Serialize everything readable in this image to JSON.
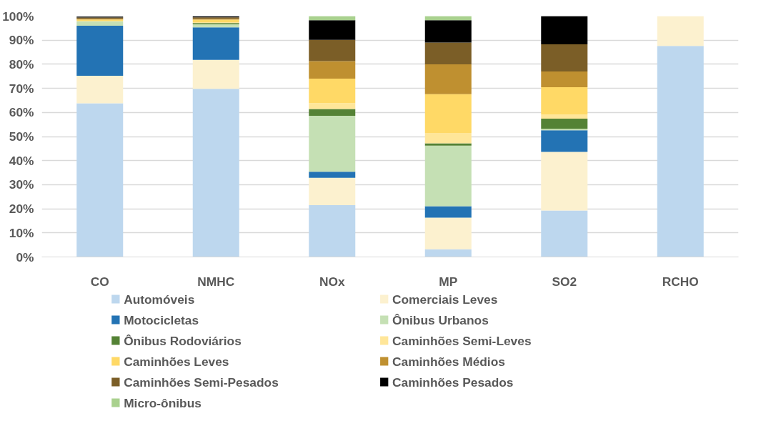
{
  "chart_data": {
    "type": "bar",
    "stacked": true,
    "categories": [
      "CO",
      "NMHC",
      "NOx",
      "MP",
      "SO2",
      "RCHO"
    ],
    "ylim": [
      0,
      100
    ],
    "yticks": [
      {
        "value": 0,
        "label": "0%"
      },
      {
        "value": 10,
        "label": "10%"
      },
      {
        "value": 20,
        "label": "20%"
      },
      {
        "value": 30,
        "label": "30%"
      },
      {
        "value": 40,
        "label": "40%"
      },
      {
        "value": 50,
        "label": "50%"
      },
      {
        "value": 60,
        "label": "60%"
      },
      {
        "value": 70,
        "label": "70%"
      },
      {
        "value": 80,
        "label": "80%"
      },
      {
        "value": 90,
        "label": "90%"
      },
      {
        "value": 100,
        "label": "100%"
      }
    ],
    "grid": "y",
    "legend": "bottom",
    "series": [
      {
        "name": "Automóveis",
        "color": "#bdd7ee",
        "values": [
          63.8,
          69.8,
          21.5,
          3.2,
          19.3,
          87.6
        ]
      },
      {
        "name": "Comerciais Leves",
        "color": "#fcf1cf",
        "values": [
          11.4,
          12.0,
          11.4,
          13.1,
          24.3,
          12.4
        ]
      },
      {
        "name": "Motocicletas",
        "color": "#2373b4",
        "values": [
          20.8,
          13.5,
          2.5,
          4.8,
          9.0,
          0
        ]
      },
      {
        "name": "Ônibus Urbanos",
        "color": "#c5e0b4",
        "values": [
          1.8,
          1.3,
          23.2,
          25.1,
          0.6,
          0
        ]
      },
      {
        "name": "Ônibus Rodoviários",
        "color": "#548235",
        "values": [
          null,
          0.5,
          2.8,
          1.0,
          4.2,
          0
        ]
      },
      {
        "name": "Caminhões Semi-Leves",
        "color": "#ffe699",
        "values": [
          0.3,
          0.4,
          2.5,
          4.3,
          1.8,
          0
        ]
      },
      {
        "name": "Caminhões Leves",
        "color": "#ffd966",
        "values": [
          0.5,
          1.0,
          10.1,
          16.1,
          11.3,
          0
        ]
      },
      {
        "name": "Caminhões Médios",
        "color": "#bf9030",
        "values": [
          0.3,
          0.4,
          7.3,
          12.4,
          6.5,
          0
        ]
      },
      {
        "name": "Caminhões Semi-Pesados",
        "color": "#7b5e27",
        "values": [
          0.5,
          0.6,
          8.8,
          9.0,
          11.3,
          0
        ]
      },
      {
        "name": "Caminhões Pesados",
        "color": "#000000",
        "values": [
          0.4,
          0.4,
          8.2,
          9.3,
          11.7,
          0
        ]
      },
      {
        "name": "Micro-ônibus",
        "color": "#a9d18e",
        "values": [
          null,
          null,
          1.7,
          1.7,
          0,
          0
        ]
      }
    ]
  }
}
